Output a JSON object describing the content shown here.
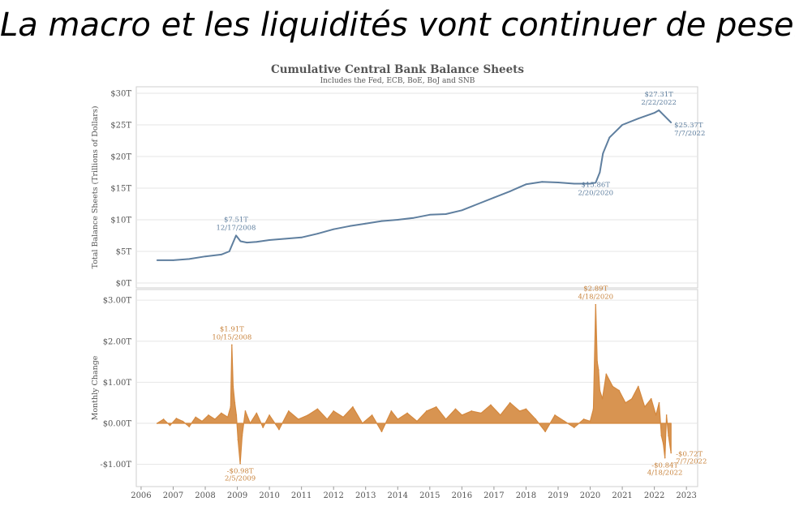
{
  "slide": {
    "title": "La macro et les liquidités vont continuer de peser"
  },
  "chart_data": {
    "type": "line",
    "title": "Cumulative Central Bank Balance Sheets",
    "subtitle": "Includes the Fed, ECB, BoE, BoJ and SNB",
    "x_ticks": [
      "2006",
      "2007",
      "2008",
      "2009",
      "2010",
      "2011",
      "2012",
      "2013",
      "2014",
      "2015",
      "2016",
      "2017",
      "2018",
      "2019",
      "2020",
      "2021",
      "2022",
      "2023"
    ],
    "colors": {
      "balance": "#5f7f9f",
      "change": "#d4883e",
      "grid": "#e6e6e6",
      "text": "#555555"
    },
    "panels": [
      {
        "name": "balance",
        "type": "line",
        "ylabel": "Total Balance Sheets (Trillions of Dollars)",
        "ylim": [
          0,
          30
        ],
        "y_ticks": [
          {
            "value": 0,
            "label": "$0T"
          },
          {
            "value": 5,
            "label": "$5T"
          },
          {
            "value": 10,
            "label": "$10T"
          },
          {
            "value": 15,
            "label": "$15T"
          },
          {
            "value": 20,
            "label": "$20T"
          },
          {
            "value": 25,
            "label": "$25T"
          },
          {
            "value": 30,
            "label": "$30T"
          }
        ],
        "series": [
          {
            "x": [
              2006.5,
              2007.0,
              2007.5,
              2008.0,
              2008.5,
              2008.75,
              2008.96,
              2009.1,
              2009.3,
              2009.6,
              2010.0,
              2010.5,
              2011.0,
              2011.5,
              2012.0,
              2012.5,
              2013.0,
              2013.5,
              2014.0,
              2014.5,
              2015.0,
              2015.5,
              2016.0,
              2016.5,
              2017.0,
              2017.5,
              2018.0,
              2018.5,
              2019.0,
              2019.5,
              2020.0,
              2020.17,
              2020.3,
              2020.4,
              2020.6,
              2021.0,
              2021.5,
              2022.0,
              2022.14,
              2022.3,
              2022.52
            ],
            "values": [
              3.6,
              3.6,
              3.8,
              4.2,
              4.5,
              5.0,
              7.51,
              6.6,
              6.4,
              6.5,
              6.8,
              7.0,
              7.2,
              7.8,
              8.5,
              9.0,
              9.4,
              9.8,
              10.0,
              10.3,
              10.8,
              10.9,
              11.5,
              12.5,
              13.5,
              14.5,
              15.6,
              16.0,
              15.9,
              15.7,
              15.7,
              15.86,
              17.5,
              20.5,
              23.0,
              25.0,
              26.0,
              26.9,
              27.31,
              26.5,
              25.37
            ]
          }
        ],
        "annotations": [
          {
            "x": 2008.96,
            "value": 7.51,
            "label": "$7.51T",
            "date": "12/17/2008"
          },
          {
            "x": 2020.17,
            "value": 15.86,
            "label": "$15.86T",
            "date": "2/20/2020"
          },
          {
            "x": 2022.14,
            "value": 27.31,
            "label": "$27.31T",
            "date": "2/22/2022"
          },
          {
            "x": 2022.52,
            "value": 25.37,
            "label": "$25.37T",
            "date": "7/7/2022"
          }
        ]
      },
      {
        "name": "change",
        "type": "area",
        "ylabel": "Monthly Change",
        "ylim": [
          -1.5,
          3.2
        ],
        "y_ticks": [
          {
            "value": -1,
            "label": "-$1.00T"
          },
          {
            "value": 0,
            "label": "$0.00T"
          },
          {
            "value": 1,
            "label": "$1.00T"
          },
          {
            "value": 2,
            "label": "$2.00T"
          },
          {
            "value": 3,
            "label": "$3.00T"
          }
        ],
        "series": [
          {
            "x": [
              2006.5,
              2006.7,
              2006.9,
              2007.1,
              2007.3,
              2007.5,
              2007.7,
              2007.9,
              2008.1,
              2008.3,
              2008.5,
              2008.7,
              2008.79,
              2008.83,
              2008.87,
              2008.92,
              2008.97,
              2009.02,
              2009.09,
              2009.15,
              2009.25,
              2009.4,
              2009.6,
              2009.8,
              2010.0,
              2010.3,
              2010.6,
              2010.9,
              2011.2,
              2011.5,
              2011.8,
              2012.0,
              2012.3,
              2012.6,
              2012.9,
              2013.2,
              2013.5,
              2013.8,
              2014.0,
              2014.3,
              2014.6,
              2014.9,
              2015.2,
              2015.5,
              2015.8,
              2016.0,
              2016.3,
              2016.6,
              2016.9,
              2017.2,
              2017.5,
              2017.8,
              2018.0,
              2018.3,
              2018.6,
              2018.9,
              2019.2,
              2019.5,
              2019.8,
              2020.0,
              2020.1,
              2020.17,
              2020.22,
              2020.26,
              2020.3,
              2020.38,
              2020.5,
              2020.7,
              2020.9,
              2021.1,
              2021.3,
              2021.5,
              2021.7,
              2021.9,
              2022.05,
              2022.15,
              2022.22,
              2022.28,
              2022.33,
              2022.38,
              2022.44,
              2022.52
            ],
            "values": [
              0.0,
              0.1,
              -0.05,
              0.12,
              0.05,
              -0.08,
              0.15,
              0.05,
              0.2,
              0.1,
              0.25,
              0.15,
              0.4,
              1.91,
              0.9,
              0.5,
              0.2,
              -0.4,
              -0.98,
              -0.3,
              0.3,
              0.0,
              0.25,
              -0.1,
              0.2,
              -0.15,
              0.3,
              0.1,
              0.2,
              0.35,
              0.1,
              0.3,
              0.15,
              0.4,
              0.0,
              0.2,
              -0.2,
              0.3,
              0.1,
              0.25,
              0.05,
              0.3,
              0.4,
              0.1,
              0.35,
              0.2,
              0.3,
              0.25,
              0.45,
              0.2,
              0.5,
              0.3,
              0.35,
              0.1,
              -0.2,
              0.2,
              0.05,
              -0.1,
              0.1,
              0.05,
              0.35,
              2.89,
              1.5,
              1.3,
              0.8,
              0.6,
              1.2,
              0.9,
              0.8,
              0.5,
              0.6,
              0.9,
              0.4,
              0.6,
              0.2,
              0.5,
              -0.3,
              -0.5,
              -0.84,
              0.2,
              -0.3,
              -0.72
            ]
          }
        ],
        "annotations": [
          {
            "x": 2008.83,
            "value": 1.91,
            "label": "$1.91T",
            "date": "10/15/2008"
          },
          {
            "x": 2009.09,
            "value": -0.98,
            "label": "-$0.98T",
            "date": "2/5/2009"
          },
          {
            "x": 2020.17,
            "value": 2.89,
            "label": "$2.89T",
            "date": "4/18/2020"
          },
          {
            "x": 2022.33,
            "value": -0.84,
            "label": "-$0.84T",
            "date": "4/18/2022"
          },
          {
            "x": 2022.52,
            "value": -0.72,
            "label": "-$0.72T",
            "date": "7/7/2022"
          }
        ]
      }
    ]
  }
}
